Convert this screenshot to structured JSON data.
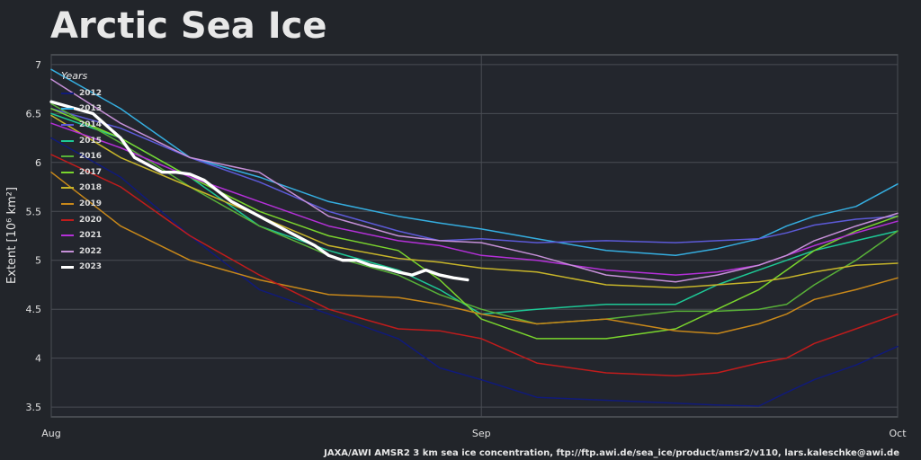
{
  "title": "Arctic Sea Ice",
  "credit": "JAXA/AWI AMSR2 3 km sea ice concentration, ftp://ftp.awi.de/sea_ice/product/amsr2/v110, lars.kaleschke@awi.de",
  "chart_data": {
    "type": "line",
    "title": "Arctic Sea Ice",
    "ylabel": "Extent [10⁶ km²]",
    "xlabel": "",
    "x_unit": "day offset from Aug 1",
    "xlim": [
      0,
      61
    ],
    "ylim": [
      3.4,
      7.1
    ],
    "x_ticks": [
      {
        "x": 0,
        "label": "Aug"
      },
      {
        "x": 31,
        "label": "Sep"
      },
      {
        "x": 61,
        "label": "Oct"
      }
    ],
    "y_ticks": [
      3.5,
      4,
      4.5,
      5,
      5.5,
      6,
      6.5,
      7
    ],
    "grid": true,
    "legend_title": "Years",
    "legend_position": "top-left",
    "series": [
      {
        "name": "2012",
        "color": "#101a7a",
        "x": [
          0,
          5,
          10,
          15,
          20,
          25,
          28,
          31,
          35,
          40,
          45,
          48,
          51,
          53,
          55,
          58,
          61
        ],
        "y": [
          6.25,
          5.85,
          5.25,
          4.7,
          4.45,
          4.2,
          3.9,
          3.78,
          3.6,
          3.57,
          3.54,
          3.52,
          3.51,
          3.65,
          3.78,
          3.93,
          4.12
        ]
      },
      {
        "name": "2013",
        "color": "#35aee0",
        "x": [
          0,
          5,
          10,
          15,
          20,
          25,
          28,
          31,
          35,
          40,
          45,
          48,
          51,
          53,
          55,
          58,
          61
        ],
        "y": [
          6.95,
          6.55,
          6.05,
          5.85,
          5.6,
          5.45,
          5.38,
          5.32,
          5.22,
          5.1,
          5.05,
          5.12,
          5.22,
          5.35,
          5.45,
          5.55,
          5.78
        ]
      },
      {
        "name": "2014",
        "color": "#5c5ad8",
        "x": [
          0,
          5,
          10,
          15,
          20,
          25,
          28,
          31,
          35,
          40,
          45,
          48,
          51,
          53,
          55,
          58,
          61
        ],
        "y": [
          6.55,
          6.35,
          6.05,
          5.8,
          5.5,
          5.3,
          5.2,
          5.22,
          5.18,
          5.2,
          5.18,
          5.2,
          5.22,
          5.28,
          5.36,
          5.42,
          5.45
        ]
      },
      {
        "name": "2015",
        "color": "#1ec896",
        "x": [
          0,
          5,
          10,
          15,
          20,
          25,
          28,
          31,
          35,
          40,
          45,
          48,
          51,
          53,
          55,
          58,
          61
        ],
        "y": [
          6.5,
          6.25,
          5.85,
          5.35,
          5.1,
          4.9,
          4.7,
          4.45,
          4.5,
          4.55,
          4.55,
          4.75,
          4.9,
          5.0,
          5.1,
          5.2,
          5.3
        ]
      },
      {
        "name": "2016",
        "color": "#58b038",
        "x": [
          0,
          5,
          10,
          15,
          20,
          25,
          28,
          31,
          35,
          40,
          45,
          48,
          51,
          53,
          55,
          58,
          61
        ],
        "y": [
          6.6,
          6.2,
          5.75,
          5.35,
          5.05,
          4.85,
          4.65,
          4.5,
          4.35,
          4.4,
          4.48,
          4.48,
          4.5,
          4.55,
          4.75,
          5.0,
          5.3
        ]
      },
      {
        "name": "2017",
        "color": "#7ad52d",
        "x": [
          0,
          5,
          10,
          15,
          20,
          25,
          28,
          31,
          35,
          40,
          45,
          48,
          51,
          53,
          55,
          58,
          61
        ],
        "y": [
          6.55,
          6.25,
          5.85,
          5.5,
          5.25,
          5.1,
          4.8,
          4.4,
          4.2,
          4.2,
          4.3,
          4.5,
          4.7,
          4.9,
          5.1,
          5.3,
          5.45
        ]
      },
      {
        "name": "2018",
        "color": "#c7b52a",
        "x": [
          0,
          5,
          10,
          15,
          20,
          25,
          28,
          31,
          35,
          40,
          45,
          48,
          51,
          53,
          55,
          58,
          61
        ],
        "y": [
          6.48,
          6.05,
          5.75,
          5.45,
          5.15,
          5.02,
          4.98,
          4.92,
          4.88,
          4.75,
          4.72,
          4.75,
          4.78,
          4.82,
          4.88,
          4.95,
          4.97
        ]
      },
      {
        "name": "2019",
        "color": "#c8881a",
        "x": [
          0,
          5,
          10,
          15,
          20,
          25,
          28,
          31,
          35,
          40,
          45,
          48,
          51,
          53,
          55,
          58,
          61
        ],
        "y": [
          5.9,
          5.35,
          5.0,
          4.8,
          4.65,
          4.62,
          4.55,
          4.45,
          4.35,
          4.4,
          4.28,
          4.25,
          4.35,
          4.45,
          4.6,
          4.7,
          4.82
        ]
      },
      {
        "name": "2020",
        "color": "#c01c1c",
        "x": [
          0,
          5,
          10,
          15,
          20,
          25,
          28,
          31,
          35,
          40,
          45,
          48,
          51,
          53,
          55,
          58,
          61
        ],
        "y": [
          6.08,
          5.75,
          5.25,
          4.85,
          4.5,
          4.3,
          4.28,
          4.2,
          3.95,
          3.85,
          3.82,
          3.85,
          3.95,
          4.0,
          4.15,
          4.3,
          4.45
        ]
      },
      {
        "name": "2021",
        "color": "#b430d8",
        "x": [
          0,
          5,
          10,
          15,
          20,
          25,
          28,
          31,
          35,
          40,
          45,
          48,
          51,
          53,
          55,
          58,
          61
        ],
        "y": [
          6.4,
          6.15,
          5.85,
          5.6,
          5.35,
          5.2,
          5.15,
          5.05,
          5.0,
          4.9,
          4.85,
          4.88,
          4.95,
          5.05,
          5.15,
          5.28,
          5.4
        ]
      },
      {
        "name": "2022",
        "color": "#c690d8",
        "x": [
          0,
          5,
          10,
          15,
          20,
          25,
          28,
          31,
          35,
          40,
          45,
          48,
          51,
          53,
          55,
          58,
          61
        ],
        "y": [
          6.85,
          6.4,
          6.05,
          5.9,
          5.45,
          5.25,
          5.2,
          5.18,
          5.05,
          4.85,
          4.78,
          4.85,
          4.95,
          5.05,
          5.2,
          5.35,
          5.48
        ]
      },
      {
        "name": "2023",
        "color": "#ffffff",
        "x": [
          0,
          3,
          5,
          6,
          8,
          9,
          10,
          11,
          13,
          15,
          17,
          19,
          20,
          21,
          22,
          23,
          24,
          25,
          26,
          27,
          28,
          29,
          30
        ],
        "y": [
          6.62,
          6.5,
          6.25,
          6.05,
          5.9,
          5.9,
          5.88,
          5.82,
          5.6,
          5.45,
          5.3,
          5.15,
          5.05,
          5.0,
          5.0,
          4.95,
          4.92,
          4.88,
          4.85,
          4.9,
          4.85,
          4.82,
          4.8
        ]
      }
    ]
  }
}
